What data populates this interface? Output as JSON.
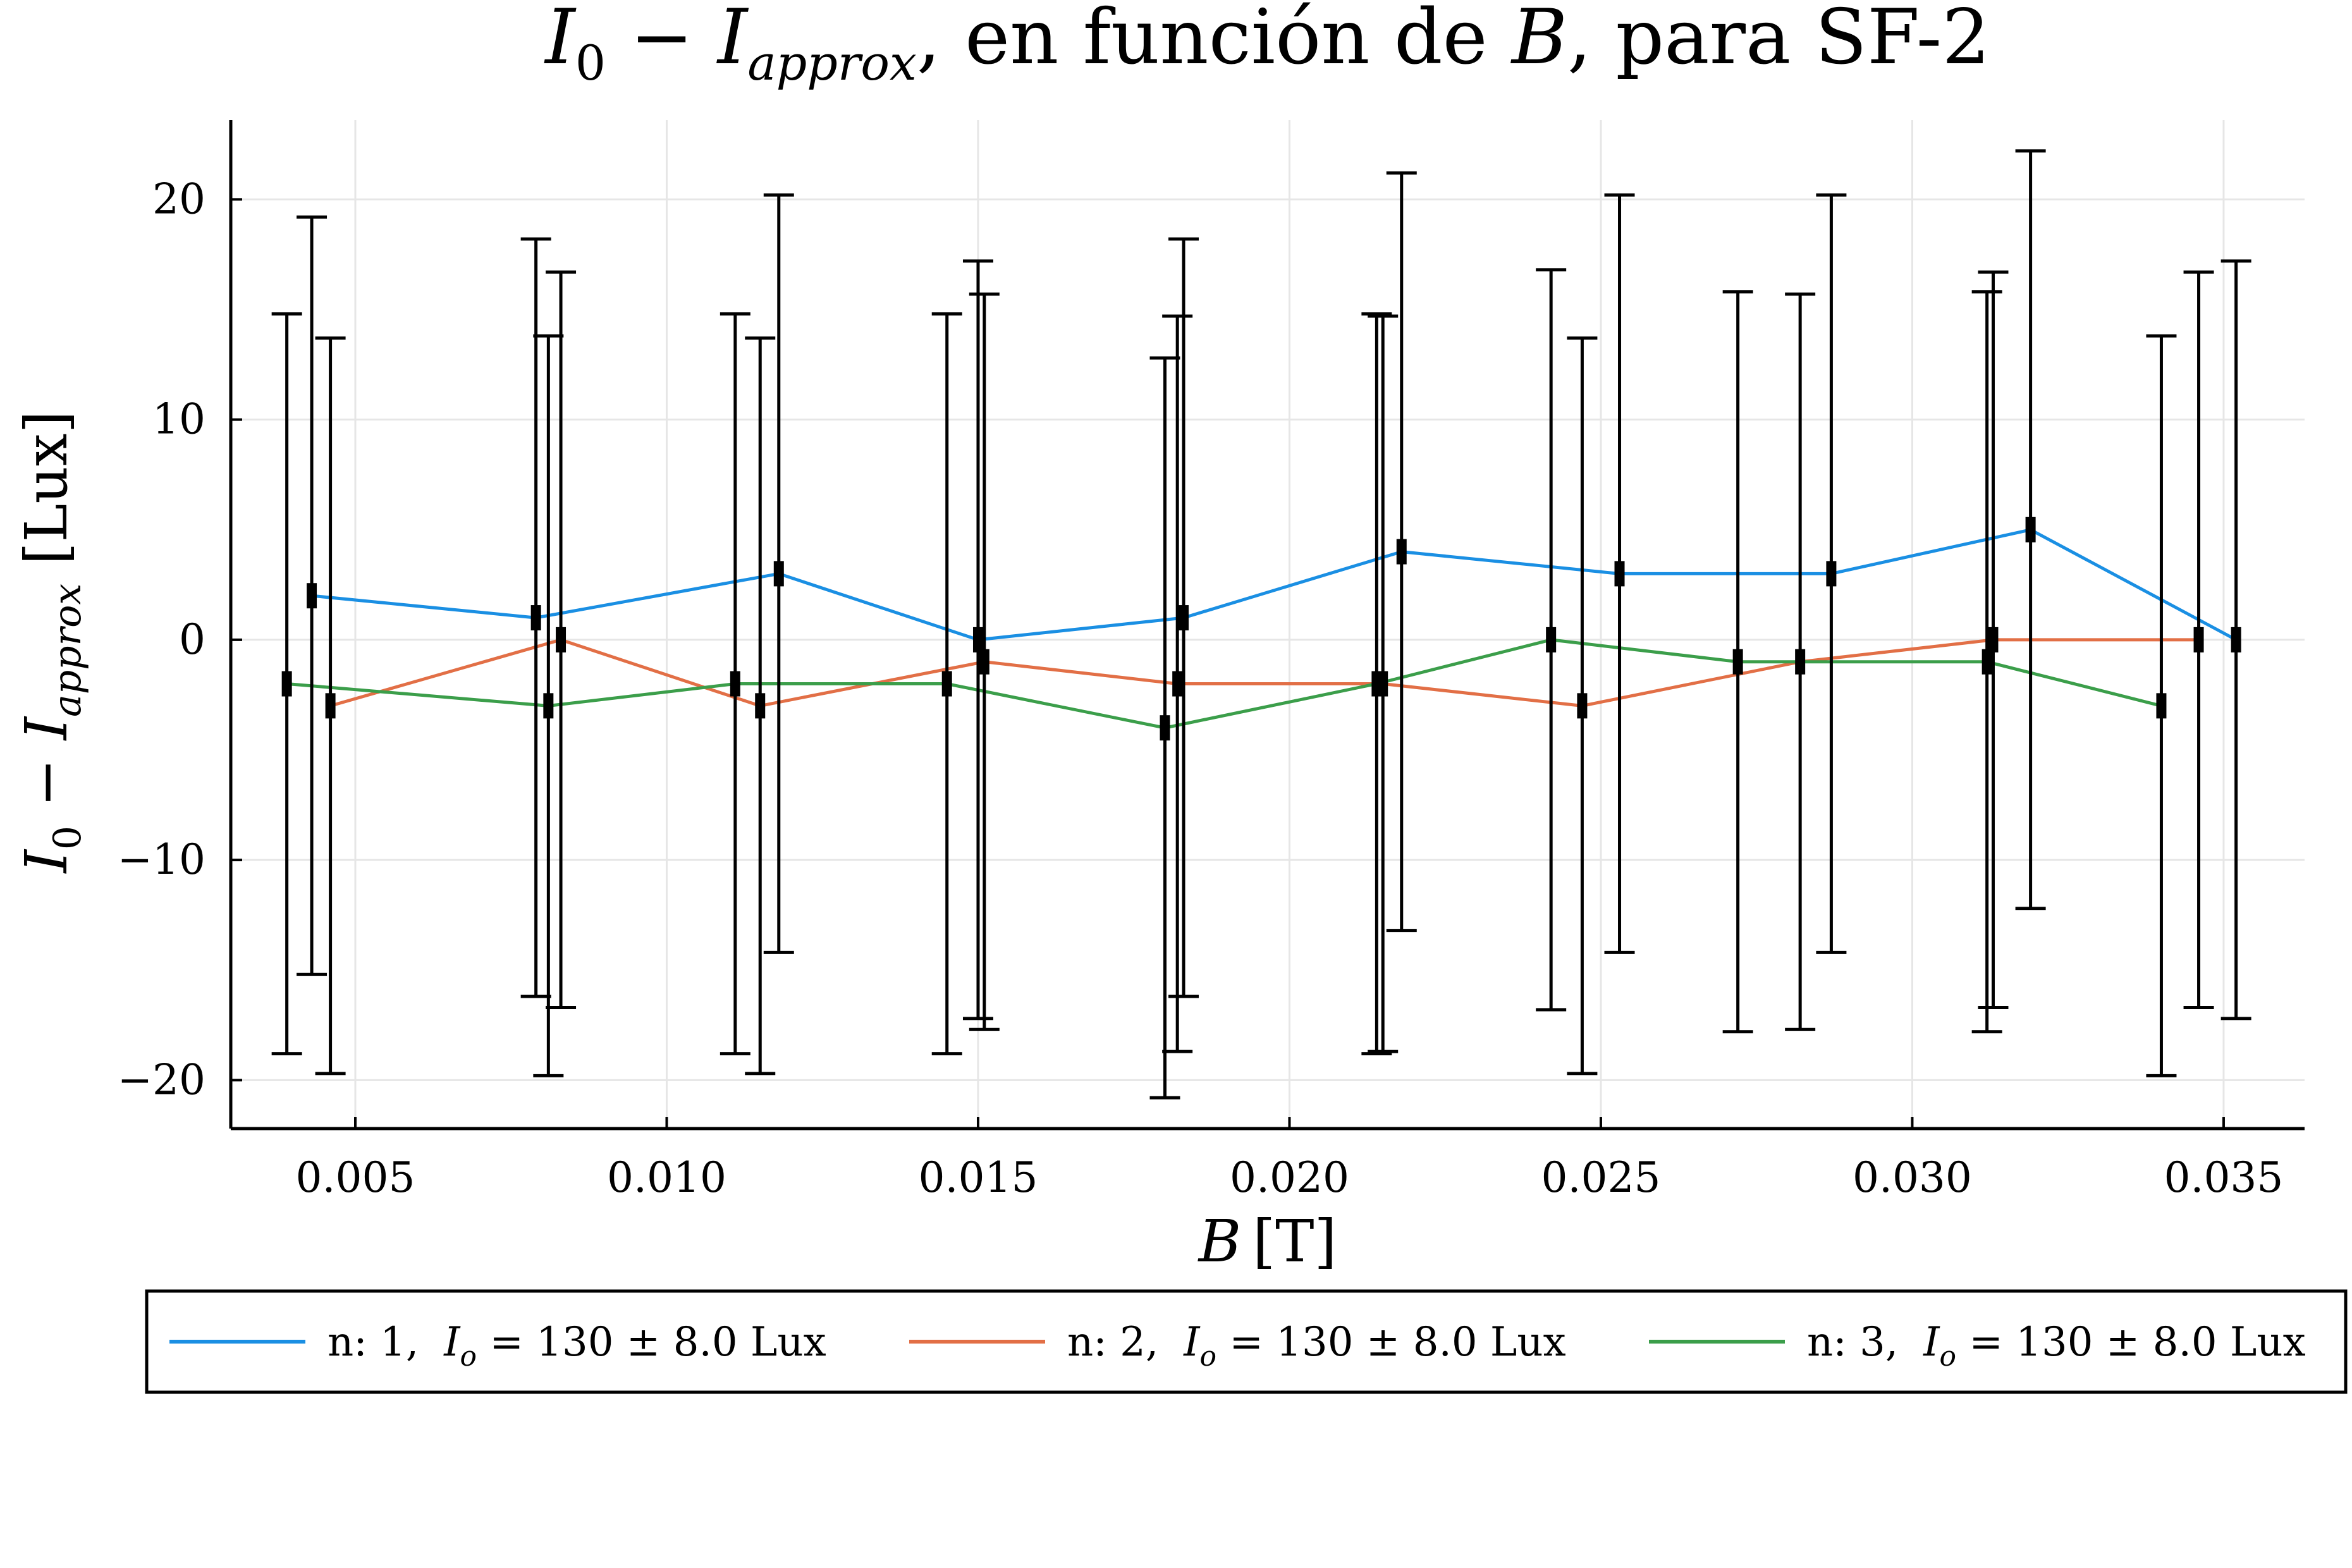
{
  "chart_data": {
    "type": "line",
    "title": {
      "a": "I",
      "a_sub": "0",
      "b": " − ",
      "c": "I",
      "c_sub": "approx",
      "d": ", en función de ",
      "e": "B",
      "f": ", para SF-2"
    },
    "xlabel": {
      "var": "B",
      "unit": "[T]"
    },
    "ylabel": {
      "a": "I",
      "a_sub": "0",
      "b": " − ",
      "c": "I",
      "c_sub": "approx",
      "unit": " [Lux]"
    },
    "xlim": [
      0.003,
      0.0363
    ],
    "ylim": [
      -22.2,
      23.6
    ],
    "xticks": [
      0.005,
      0.01,
      0.015,
      0.02,
      0.025,
      0.03,
      0.035
    ],
    "xtick_labels": [
      "0.005",
      "0.010",
      "0.015",
      "0.020",
      "0.025",
      "0.030",
      "0.035"
    ],
    "yticks": [
      -20,
      -10,
      0,
      10,
      20
    ],
    "ytick_labels": [
      "−20",
      "−10",
      "0",
      "10",
      "20"
    ],
    "grid": true,
    "legend_position": "bottom",
    "errorbar_color": "#000000",
    "series": [
      {
        "legend": {
          "n": "n: 1,",
          "sym": "I",
          "sub": "o",
          "rest": " = 130 ± 8.0 Lux"
        },
        "color": "#1a8fe3",
        "x": [
          0.0043,
          0.0079,
          0.0118,
          0.015,
          0.0183,
          0.0218,
          0.0253,
          0.0287,
          0.0319,
          0.0352
        ],
        "y": [
          2,
          1,
          3,
          0,
          1,
          4,
          3,
          3,
          5,
          0
        ],
        "err": [
          17.2,
          17.2,
          17.2,
          17.2,
          17.2,
          17.2,
          17.2,
          17.2,
          17.2,
          17.2
        ]
      },
      {
        "legend": {
          "n": "n: 2,",
          "sym": "I",
          "sub": "o",
          "rest": " = 130 ± 8.0 Lux"
        },
        "color": "#e26f46",
        "x": [
          0.0046,
          0.0083,
          0.0115,
          0.0151,
          0.0182,
          0.0215,
          0.0247,
          0.0282,
          0.0313,
          0.0346
        ],
        "y": [
          -3,
          0,
          -3,
          -1,
          -2,
          -2,
          -3,
          -1,
          0,
          0
        ],
        "err": [
          16.7,
          16.7,
          16.7,
          16.7,
          16.7,
          16.7,
          16.7,
          16.7,
          16.7,
          16.7
        ]
      },
      {
        "legend": {
          "n": "n: 3,",
          "sym": "I",
          "sub": "o",
          "rest": " = 130 ± 8.0 Lux"
        },
        "color": "#3b9e4a",
        "x": [
          0.0039,
          0.0081,
          0.0111,
          0.0145,
          0.018,
          0.0214,
          0.0242,
          0.0272,
          0.0312,
          0.034
        ],
        "y": [
          -2,
          -3,
          -2,
          -2,
          -4,
          -2,
          0,
          -1,
          -1,
          -3
        ],
        "err": [
          16.8,
          16.8,
          16.8,
          16.8,
          16.8,
          16.8,
          16.8,
          16.8,
          16.8,
          16.8
        ]
      }
    ]
  }
}
